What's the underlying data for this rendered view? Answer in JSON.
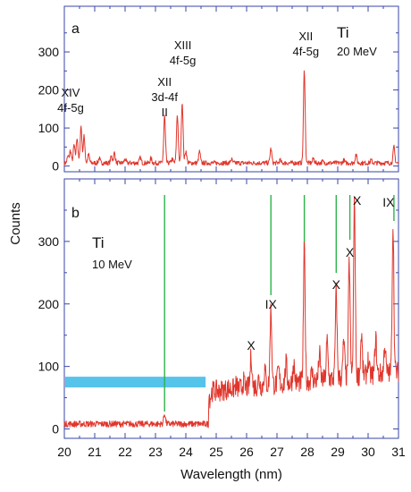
{
  "chart_data": [
    {
      "panel_letter": "a",
      "type": "line",
      "element": "Ti",
      "energy": "20 MeV",
      "xlabel": "Wavelength (nm)",
      "ylabel": "Counts",
      "xlim": [
        20,
        31
      ],
      "ylim": [
        -15,
        420
      ],
      "yticks": [
        "0",
        "100",
        "200",
        "300"
      ],
      "baseline": 8,
      "peaks": [
        {
          "x": 20.12,
          "y": 25
        },
        {
          "x": 20.2,
          "y": 40
        },
        {
          "x": 20.32,
          "y": 55
        },
        {
          "x": 20.42,
          "y": 75
        },
        {
          "x": 20.55,
          "y": 105
        },
        {
          "x": 20.65,
          "y": 78
        },
        {
          "x": 20.8,
          "y": 30
        },
        {
          "x": 21.15,
          "y": 20
        },
        {
          "x": 21.55,
          "y": 25
        },
        {
          "x": 21.65,
          "y": 35
        },
        {
          "x": 22.0,
          "y": 18
        },
        {
          "x": 22.5,
          "y": 22
        },
        {
          "x": 22.85,
          "y": 20
        },
        {
          "x": 23.3,
          "y": 132
        },
        {
          "x": 23.55,
          "y": 18
        },
        {
          "x": 23.72,
          "y": 135
        },
        {
          "x": 23.88,
          "y": 168
        },
        {
          "x": 24.0,
          "y": 40
        },
        {
          "x": 24.45,
          "y": 38
        },
        {
          "x": 25.5,
          "y": 18
        },
        {
          "x": 26.8,
          "y": 45
        },
        {
          "x": 27.1,
          "y": 15
        },
        {
          "x": 27.9,
          "y": 250
        },
        {
          "x": 28.2,
          "y": 20
        },
        {
          "x": 28.5,
          "y": 12
        },
        {
          "x": 29.2,
          "y": 15
        },
        {
          "x": 29.6,
          "y": 30
        },
        {
          "x": 30.1,
          "y": 15
        },
        {
          "x": 30.85,
          "y": 50
        }
      ],
      "annotations": [
        {
          "lines": [
            "XIV",
            "4f-5g"
          ],
          "x": 20.5
        },
        {
          "lines": [
            "XII",
            "3d-4f",
            "II"
          ],
          "x": 23.3
        },
        {
          "lines": [
            "XIII",
            "4f-5g"
          ],
          "x": 23.9
        },
        {
          "lines": [
            "XII",
            "4f-5g"
          ],
          "x": 27.95
        }
      ]
    },
    {
      "panel_letter": "b",
      "type": "line",
      "element": "Ti",
      "energy": "10 MeV",
      "xlabel": "Wavelength (nm)",
      "ylabel": "Counts",
      "xlim": [
        20,
        31
      ],
      "ylim": [
        -15,
        400
      ],
      "yticks": [
        "0",
        "100",
        "200",
        "300"
      ],
      "xticks": [
        "20",
        "21",
        "22",
        "23",
        "24",
        "25",
        "26",
        "27",
        "28",
        "29",
        "30",
        "31"
      ],
      "peaks": [
        {
          "x": 23.3,
          "y": 25
        },
        {
          "x": 24.8,
          "y": 50
        },
        {
          "x": 25.1,
          "y": 60
        },
        {
          "x": 25.4,
          "y": 65
        },
        {
          "x": 25.65,
          "y": 70
        },
        {
          "x": 25.9,
          "y": 75
        },
        {
          "x": 26.15,
          "y": 118
        },
        {
          "x": 26.4,
          "y": 80
        },
        {
          "x": 26.6,
          "y": 95
        },
        {
          "x": 26.8,
          "y": 190
        },
        {
          "x": 27.05,
          "y": 95
        },
        {
          "x": 27.3,
          "y": 105
        },
        {
          "x": 27.55,
          "y": 105
        },
        {
          "x": 27.9,
          "y": 285
        },
        {
          "x": 28.15,
          "y": 90
        },
        {
          "x": 28.4,
          "y": 120
        },
        {
          "x": 28.65,
          "y": 140
        },
        {
          "x": 28.95,
          "y": 220
        },
        {
          "x": 29.2,
          "y": 140
        },
        {
          "x": 29.38,
          "y": 268
        },
        {
          "x": 29.55,
          "y": 360
        },
        {
          "x": 29.78,
          "y": 150
        },
        {
          "x": 30.0,
          "y": 110
        },
        {
          "x": 30.25,
          "y": 145
        },
        {
          "x": 30.55,
          "y": 135
        },
        {
          "x": 30.82,
          "y": 328
        }
      ],
      "markers": [
        23.3,
        26.8,
        27.9,
        28.95,
        29.4,
        30.85
      ],
      "annotations": [
        {
          "text": "X",
          "x": 26.15
        },
        {
          "text": "IX",
          "x": 26.8
        },
        {
          "text": "X",
          "x": 28.95
        },
        {
          "text": "X",
          "x": 29.4
        },
        {
          "text": "X",
          "x": 29.58
        },
        {
          "text": "IX",
          "x": 30.73
        }
      ],
      "band": {
        "x0": 20,
        "x1": 24.65,
        "y": 75
      }
    }
  ]
}
